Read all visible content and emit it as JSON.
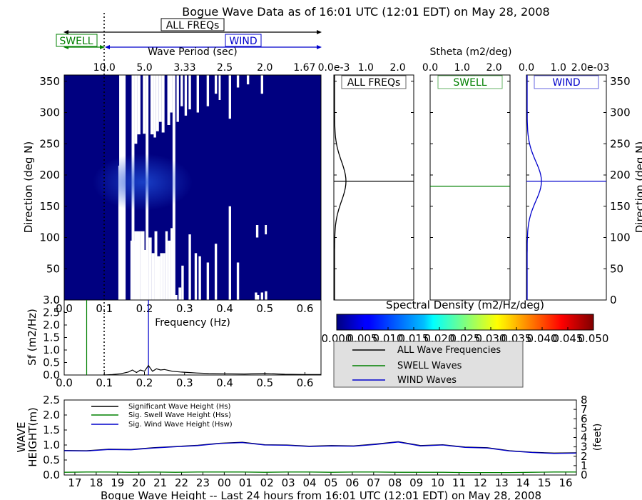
{
  "title": "Bogue Wave Data as of 16:01 UTC (12:01 EDT) on May 28, 2008",
  "band_labels": {
    "all": "ALL FREQs",
    "swell": "SWELL",
    "wind": "WIND"
  },
  "colors": {
    "all": "#000000",
    "swell": "#008000",
    "wind": "#0000cc",
    "panel_bg": "#000080",
    "legend_bg": "#e0e0e0"
  },
  "directional_spectrum": {
    "top_axis_label": "Wave Period (sec)",
    "top_ticks": [
      "10.0",
      "5.0",
      "3.33",
      "2.5",
      "2.0",
      "1.67"
    ],
    "ylabel": "Direction (deg N)",
    "yticks": [
      "0",
      "50",
      "100",
      "150",
      "200",
      "250",
      "300",
      "350"
    ],
    "xlabel": "Frequency (Hz)",
    "xticks": [
      "0.0",
      "0.1",
      "0.2",
      "0.3",
      "0.4",
      "0.5",
      "0.6"
    ]
  },
  "stheta": {
    "title": "Stheta (m2/deg)",
    "panel_titles": [
      "ALL FREQs",
      "SWELL",
      "WIND"
    ],
    "panel_ticks": [
      [
        "0.0e-3",
        "1.0",
        "2.0"
      ],
      [
        "0.0",
        "1.0",
        "2.0"
      ],
      [
        "0.0",
        "1.0",
        "2.0e-03"
      ]
    ],
    "right_ylabel": "Direction (deg N)"
  },
  "colorbar": {
    "title": "Spectral Density (m2/Hz/deg)",
    "ticks": [
      "0.000",
      "0.005",
      "0.010",
      "0.015",
      "0.020",
      "0.025",
      "0.030",
      "0.035",
      "0.040",
      "0.045",
      "0.050"
    ]
  },
  "legend": {
    "items": [
      "ALL Wave Frequencies",
      "SWELL Waves",
      "WIND Waves"
    ]
  },
  "sf": {
    "ylabel": "Sf (m2/Hz)",
    "yticks": [
      "0.0",
      "0.5",
      "1.0",
      "1.5",
      "2.0",
      "2.5",
      "3.0"
    ]
  },
  "wave_height": {
    "ylabel_line1": "WAVE",
    "ylabel_line2": "HEIGHT(m)",
    "right_ylabel": "(feet)",
    "xlabel": "Bogue Wave Height -- Last 24 hours from 16:01 UTC (12:01 EDT) on May 28, 2008",
    "legend": [
      "Significant Wave Height (Hs)",
      "Sig. Swell Wave Height (Hss)",
      "Sig. Wind Wave Height (Hsw)"
    ],
    "yticks": [
      "0.0",
      "0.5",
      "1.0",
      "1.5",
      "2.0",
      "2.5"
    ],
    "right_yticks": [
      "0",
      "1",
      "2",
      "3",
      "4",
      "5",
      "6",
      "7",
      "8"
    ],
    "xticks": [
      "17",
      "18",
      "19",
      "20",
      "21",
      "22",
      "23",
      "00",
      "01",
      "02",
      "03",
      "04",
      "05",
      "06",
      "07",
      "08",
      "09",
      "10",
      "11",
      "12",
      "13",
      "14",
      "15",
      "16"
    ]
  },
  "chart_data": [
    {
      "type": "heatmap",
      "name": "directional spectrum",
      "xlabel": "Frequency (Hz)",
      "ylabel": "Direction (deg N)",
      "xlim": [
        0.0,
        0.64
      ],
      "ylim": [
        0,
        360
      ],
      "colorbar_range": [
        0.0,
        0.05
      ],
      "swell_wind_boundary_hz": 0.1,
      "secondary_x_label": "Wave Period (sec)"
    },
    {
      "type": "line",
      "name": "Sf spectrum",
      "xlabel": "Frequency (Hz)",
      "ylabel": "Sf (m2/Hz)",
      "xlim": [
        0.0,
        0.64
      ],
      "ylim": [
        0.0,
        3.0
      ],
      "x": [
        0.1,
        0.12,
        0.14,
        0.16,
        0.17,
        0.18,
        0.19,
        0.2,
        0.21,
        0.22,
        0.23,
        0.24,
        0.25,
        0.27,
        0.29,
        0.31,
        0.33,
        0.36,
        0.4,
        0.45,
        0.5,
        0.55,
        0.6,
        0.64
      ],
      "values": [
        0.0,
        0.02,
        0.05,
        0.12,
        0.2,
        0.1,
        0.2,
        0.15,
        0.38,
        0.15,
        0.25,
        0.2,
        0.22,
        0.15,
        0.12,
        0.1,
        0.08,
        0.06,
        0.05,
        0.04,
        0.06,
        0.03,
        0.02,
        0.02
      ],
      "vlines": [
        {
          "x": 0.056,
          "series": "SWELL"
        },
        {
          "x": 0.21,
          "series": "WIND"
        },
        {
          "x": 0.1,
          "style": "dotted"
        }
      ]
    },
    {
      "type": "line",
      "name": "Stheta",
      "ylabel": "Direction (deg N)",
      "ylim": [
        0,
        360
      ],
      "peak_direction": [
        {
          "series": "ALL",
          "deg": 190
        },
        {
          "series": "SWELL",
          "deg": 182
        },
        {
          "series": "WIND",
          "deg": 190
        }
      ]
    },
    {
      "type": "line",
      "name": "wave height",
      "ylabel": "WAVE HEIGHT(m)",
      "ylim": [
        0.0,
        2.5
      ],
      "right_ylim_feet": [
        0,
        8
      ],
      "categories": [
        "17",
        "18",
        "19",
        "20",
        "21",
        "22",
        "23",
        "00",
        "01",
        "02",
        "03",
        "04",
        "05",
        "06",
        "07",
        "08",
        "09",
        "10",
        "11",
        "12",
        "13",
        "14",
        "15",
        "16"
      ],
      "series": [
        {
          "name": "Significant Wave Height (Hs)",
          "values": [
            0.82,
            0.81,
            0.86,
            0.85,
            0.91,
            0.95,
            0.99,
            1.06,
            1.09,
            1.01,
            1.0,
            0.96,
            0.98,
            0.97,
            1.03,
            1.11,
            0.98,
            1.01,
            0.93,
            0.91,
            0.81,
            0.76,
            0.73,
            0.74
          ]
        },
        {
          "name": "Sig. Swell Wave Height (Hss)",
          "values": [
            0.09,
            0.1,
            0.1,
            0.09,
            0.1,
            0.09,
            0.1,
            0.1,
            0.1,
            0.09,
            0.1,
            0.1,
            0.09,
            0.1,
            0.1,
            0.09,
            0.09,
            0.09,
            0.08,
            0.08,
            0.08,
            0.09,
            0.1,
            0.1
          ]
        },
        {
          "name": "Sig. Wind Wave Height (Hsw)",
          "values": [
            0.81,
            0.8,
            0.85,
            0.84,
            0.9,
            0.94,
            0.98,
            1.05,
            1.08,
            1.0,
            0.99,
            0.95,
            0.97,
            0.96,
            1.02,
            1.1,
            0.97,
            1.0,
            0.92,
            0.9,
            0.8,
            0.75,
            0.72,
            0.73
          ]
        }
      ]
    }
  ]
}
